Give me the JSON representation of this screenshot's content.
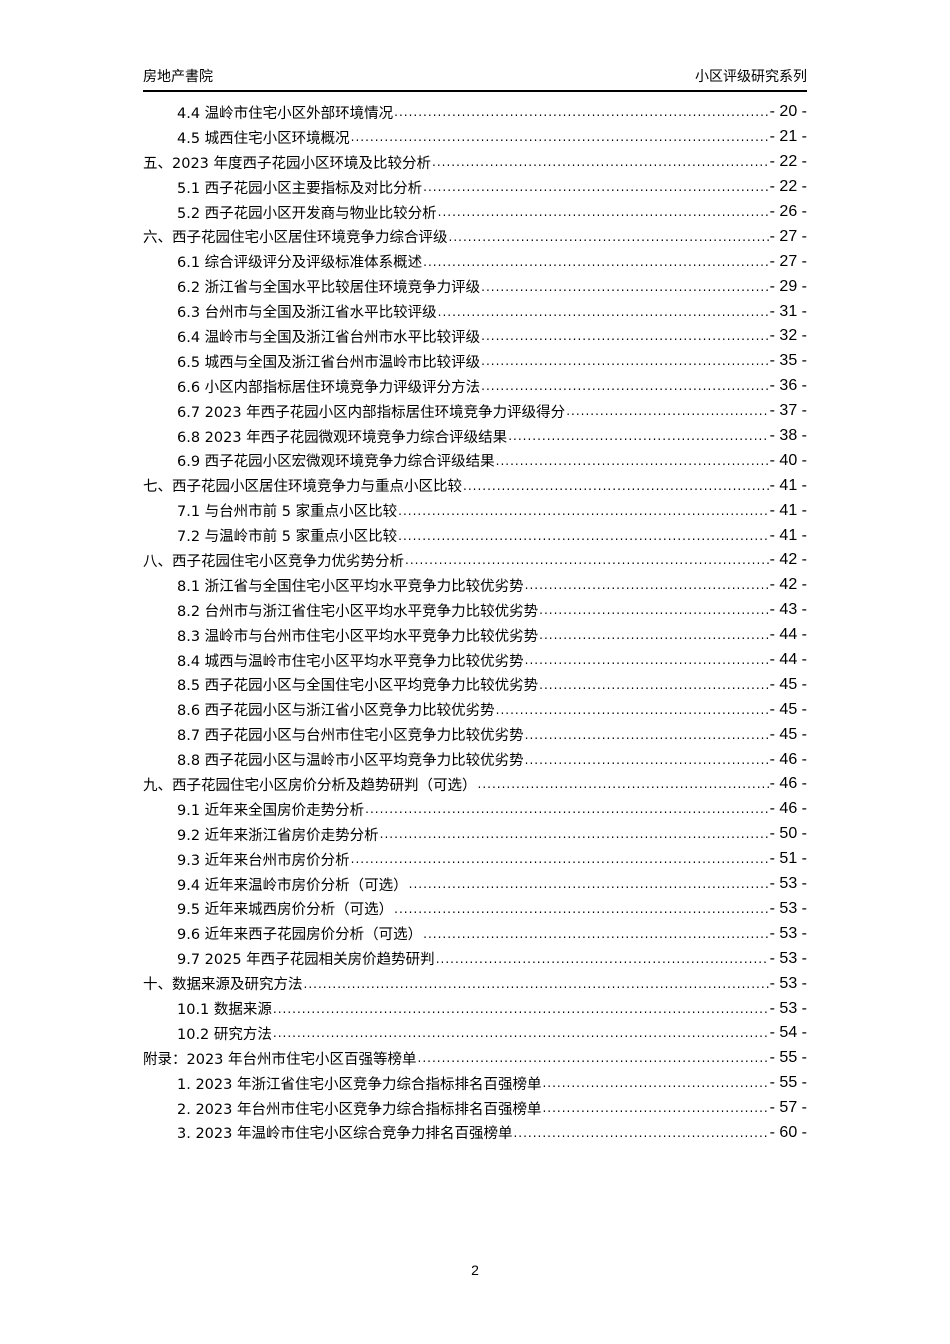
{
  "header": {
    "left": "房地产書院",
    "right": "小区评级研究系列"
  },
  "toc": [
    {
      "level": 2,
      "title": "4.4 温岭市住宅小区外部环境情况",
      "page": "- 20 -"
    },
    {
      "level": 2,
      "title": "4.5 城西住宅小区环境概况",
      "page": "- 21 -"
    },
    {
      "level": 1,
      "title": "五、2023 年度西子花园小区环境及比较分析",
      "page": "- 22 -"
    },
    {
      "level": 2,
      "title": "5.1 西子花园小区主要指标及对比分析",
      "page": "- 22 -"
    },
    {
      "level": 2,
      "title": "5.2 西子花园小区开发商与物业比较分析",
      "page": "- 26 -"
    },
    {
      "level": 1,
      "title": "六、西子花园住宅小区居住环境竞争力综合评级",
      "page": "- 27 -"
    },
    {
      "level": 2,
      "title": "6.1 综合评级评分及评级标准体系概述",
      "page": "- 27 -"
    },
    {
      "level": 2,
      "title": "6.2 浙江省与全国水平比较居住环境竞争力评级",
      "page": "- 29 -"
    },
    {
      "level": 2,
      "title": "6.3 台州市与全国及浙江省水平比较评级",
      "page": "- 31 -"
    },
    {
      "level": 2,
      "title": "6.4 温岭市与全国及浙江省台州市水平比较评级",
      "page": "- 32 -"
    },
    {
      "level": 2,
      "title": "6.5 城西与全国及浙江省台州市温岭市比较评级",
      "page": "- 35 -"
    },
    {
      "level": 2,
      "title": "6.6 小区内部指标居住环境竞争力评级评分方法",
      "page": "- 36 -"
    },
    {
      "level": 2,
      "title": "6.7 2023 年西子花园小区内部指标居住环境竞争力评级得分",
      "page": "- 37 -"
    },
    {
      "level": 2,
      "title": "6.8 2023 年西子花园微观环境竞争力综合评级结果",
      "page": "- 38 -"
    },
    {
      "level": 2,
      "title": "6.9 西子花园小区宏微观环境竞争力综合评级结果",
      "page": "- 40 -"
    },
    {
      "level": 1,
      "title": "七、西子花园小区居住环境竞争力与重点小区比较",
      "page": "- 41 -"
    },
    {
      "level": 2,
      "title": "7.1 与台州市前 5 家重点小区比较",
      "page": "- 41 -"
    },
    {
      "level": 2,
      "title": "7.2 与温岭市前 5 家重点小区比较",
      "page": "- 41 -"
    },
    {
      "level": 1,
      "title": "八、西子花园住宅小区竞争力优劣势分析",
      "page": "- 42 -"
    },
    {
      "level": 2,
      "title": "8.1 浙江省与全国住宅小区平均水平竞争力比较优劣势",
      "page": "- 42 -"
    },
    {
      "level": 2,
      "title": "8.2 台州市与浙江省住宅小区平均水平竞争力比较优劣势",
      "page": "- 43 -"
    },
    {
      "level": 2,
      "title": "8.3 温岭市与台州市住宅小区平均水平竞争力比较优劣势",
      "page": "- 44 -"
    },
    {
      "level": 2,
      "title": "8.4 城西与温岭市住宅小区平均水平竞争力比较优劣势",
      "page": "- 44 -"
    },
    {
      "level": 2,
      "title": "8.5 西子花园小区与全国住宅小区平均竞争力比较优劣势",
      "page": "- 45 -"
    },
    {
      "level": 2,
      "title": "8.6 西子花园小区与浙江省小区竞争力比较优劣势",
      "page": "- 45 -"
    },
    {
      "level": 2,
      "title": "8.7 西子花园小区与台州市住宅小区竞争力比较优劣势",
      "page": "- 45 -"
    },
    {
      "level": 2,
      "title": "8.8 西子花园小区与温岭市小区平均竞争力比较优劣势",
      "page": "- 46 -"
    },
    {
      "level": 1,
      "title": "九、西子花园住宅小区房价分析及趋势研判（可选）",
      "page": "- 46 -"
    },
    {
      "level": 2,
      "title": "9.1 近年来全国房价走势分析",
      "page": "- 46 -"
    },
    {
      "level": 2,
      "title": "9.2 近年来浙江省房价走势分析",
      "page": "- 50 -"
    },
    {
      "level": 2,
      "title": "9.3 近年来台州市房价分析",
      "page": "- 51 -"
    },
    {
      "level": 2,
      "title": "9.4 近年来温岭市房价分析（可选）",
      "page": "- 53 -"
    },
    {
      "level": 2,
      "title": "9.5 近年来城西房价分析（可选）",
      "page": "- 53 -"
    },
    {
      "level": 2,
      "title": "9.6 近年来西子花园房价分析（可选）",
      "page": "- 53 -"
    },
    {
      "level": 2,
      "title": "9.7 2025 年西子花园相关房价趋势研判",
      "page": "- 53 -"
    },
    {
      "level": 1,
      "title": "十、数据来源及研究方法",
      "page": "- 53 -"
    },
    {
      "level": 2,
      "title": "10.1 数据来源",
      "page": "- 53 -"
    },
    {
      "level": 2,
      "title": "10.2 研究方法",
      "page": "- 54 -"
    },
    {
      "level": 1,
      "title": "附录：2023 年台州市住宅小区百强等榜单",
      "page": "- 55 -"
    },
    {
      "level": 2,
      "title": "1.  2023 年浙江省住宅小区竞争力综合指标排名百强榜单",
      "page": "- 55 -"
    },
    {
      "level": 2,
      "title": "2.  2023 年台州市住宅小区竞争力综合指标排名百强榜单",
      "page": "- 57 -"
    },
    {
      "level": 2,
      "title": "3.  2023 年温岭市住宅小区综合竞争力排名百强榜单",
      "page": "- 60 -"
    }
  ],
  "footer": {
    "page_number": "2"
  }
}
